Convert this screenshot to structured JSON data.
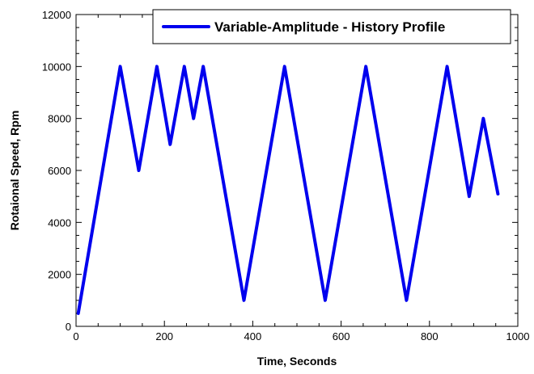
{
  "chart_data": {
    "type": "line",
    "xlabel": "Time, Seconds",
    "ylabel": "Rotaional Speed, Rpm",
    "xlim": [
      0,
      1000
    ],
    "ylim": [
      0,
      12000
    ],
    "x_ticks": [
      0,
      200,
      400,
      600,
      800,
      1000
    ],
    "y_ticks": [
      0,
      2000,
      4000,
      6000,
      8000,
      10000,
      12000
    ],
    "grid": false,
    "legend_position": "top-right",
    "series": [
      {
        "name": "Variable-Amplitude - History Profile",
        "color": "#0000ee",
        "x": [
          5,
          100,
          142,
          183,
          213,
          245,
          266,
          288,
          380,
          472,
          564,
          656,
          748,
          840,
          890,
          922,
          955
        ],
        "y": [
          500,
          10000,
          6000,
          10000,
          7000,
          10000,
          8000,
          10000,
          1000,
          10000,
          1000,
          10000,
          1000,
          10000,
          5000,
          8000,
          5100
        ]
      }
    ]
  }
}
